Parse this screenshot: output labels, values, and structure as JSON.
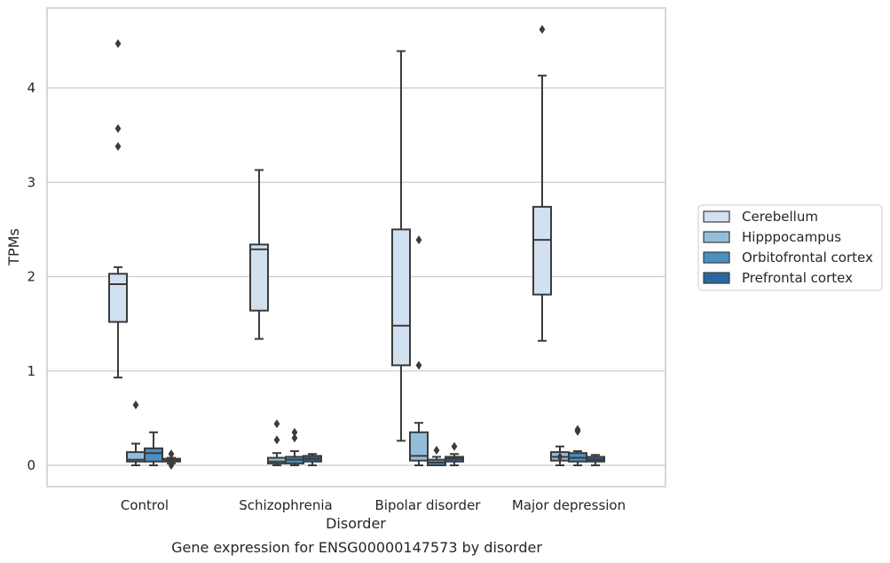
{
  "caption": "Gene expression for ENSG00000147573 by disorder",
  "chart_data": {
    "type": "box",
    "title": "",
    "xlabel": "Disorder",
    "ylabel": "TPMs",
    "ylim": [
      -0.22,
      4.87
    ],
    "yticks": [
      0,
      1,
      2,
      3,
      4
    ],
    "grid": "horizontal",
    "legend_position": "right",
    "categories": [
      "Control",
      "Schizophrenia",
      "Bipolar disorder",
      "Major depression"
    ],
    "colors": {
      "Cerebellum": "#d1e1f0",
      "Hipppocampus": "#93bedb",
      "Orbitofrontal cortex": "#4a8fc1",
      "Prefrontal cortex": "#2967a4",
      "edge": "#3b3b3b",
      "grid": "#cccccc"
    },
    "series": [
      {
        "name": "Cerebellum",
        "boxes": [
          {
            "whislo": 0.93,
            "q1": 1.52,
            "med": 1.92,
            "q3": 2.03,
            "whishi": 2.1,
            "fliers": [
              3.38,
              3.57,
              4.47
            ]
          },
          {
            "whislo": 1.34,
            "q1": 1.64,
            "med": 2.29,
            "q3": 2.34,
            "whishi": 3.13,
            "fliers": []
          },
          {
            "whislo": 0.26,
            "q1": 1.06,
            "med": 1.48,
            "q3": 2.5,
            "whishi": 4.39,
            "fliers": []
          },
          {
            "whislo": 1.32,
            "q1": 1.81,
            "med": 2.39,
            "q3": 2.74,
            "whishi": 4.13,
            "fliers": [
              4.62
            ]
          }
        ]
      },
      {
        "name": "Hipppocampus",
        "boxes": [
          {
            "whislo": 0.0,
            "q1": 0.04,
            "med": 0.06,
            "q3": 0.14,
            "whishi": 0.23,
            "fliers": [
              0.64
            ]
          },
          {
            "whislo": 0.0,
            "q1": 0.02,
            "med": 0.04,
            "q3": 0.08,
            "whishi": 0.13,
            "fliers": [
              0.27,
              0.44
            ]
          },
          {
            "whislo": 0.0,
            "q1": 0.05,
            "med": 0.1,
            "q3": 0.35,
            "whishi": 0.45,
            "fliers": [
              1.06,
              2.39
            ]
          },
          {
            "whislo": 0.0,
            "q1": 0.05,
            "med": 0.09,
            "q3": 0.14,
            "whishi": 0.2,
            "fliers": [
              0.09
            ]
          }
        ]
      },
      {
        "name": "Orbitofrontal cortex",
        "boxes": [
          {
            "whislo": 0.0,
            "q1": 0.04,
            "med": 0.13,
            "q3": 0.18,
            "whishi": 0.35,
            "fliers": []
          },
          {
            "whislo": 0.0,
            "q1": 0.02,
            "med": 0.06,
            "q3": 0.09,
            "whishi": 0.15,
            "fliers": [
              0.29,
              0.35
            ]
          },
          {
            "whislo": 0.0,
            "q1": 0.0,
            "med": 0.03,
            "q3": 0.06,
            "whishi": 0.09,
            "fliers": [
              0.16
            ]
          },
          {
            "whislo": 0.0,
            "q1": 0.04,
            "med": 0.08,
            "q3": 0.13,
            "whishi": 0.15,
            "fliers": [
              0.36,
              0.38
            ]
          }
        ]
      },
      {
        "name": "Prefrontal cortex",
        "boxes": [
          {
            "whislo": 0.02,
            "q1": 0.04,
            "med": 0.05,
            "q3": 0.07,
            "whishi": 0.08,
            "fliers": [
              0.0,
              0.04,
              0.12
            ]
          },
          {
            "whislo": 0.0,
            "q1": 0.04,
            "med": 0.07,
            "q3": 0.1,
            "whishi": 0.12,
            "fliers": []
          },
          {
            "whislo": 0.0,
            "q1": 0.04,
            "med": 0.07,
            "q3": 0.09,
            "whishi": 0.12,
            "fliers": [
              0.2
            ]
          },
          {
            "whislo": 0.0,
            "q1": 0.04,
            "med": 0.06,
            "q3": 0.09,
            "whishi": 0.11,
            "fliers": []
          }
        ]
      }
    ]
  }
}
